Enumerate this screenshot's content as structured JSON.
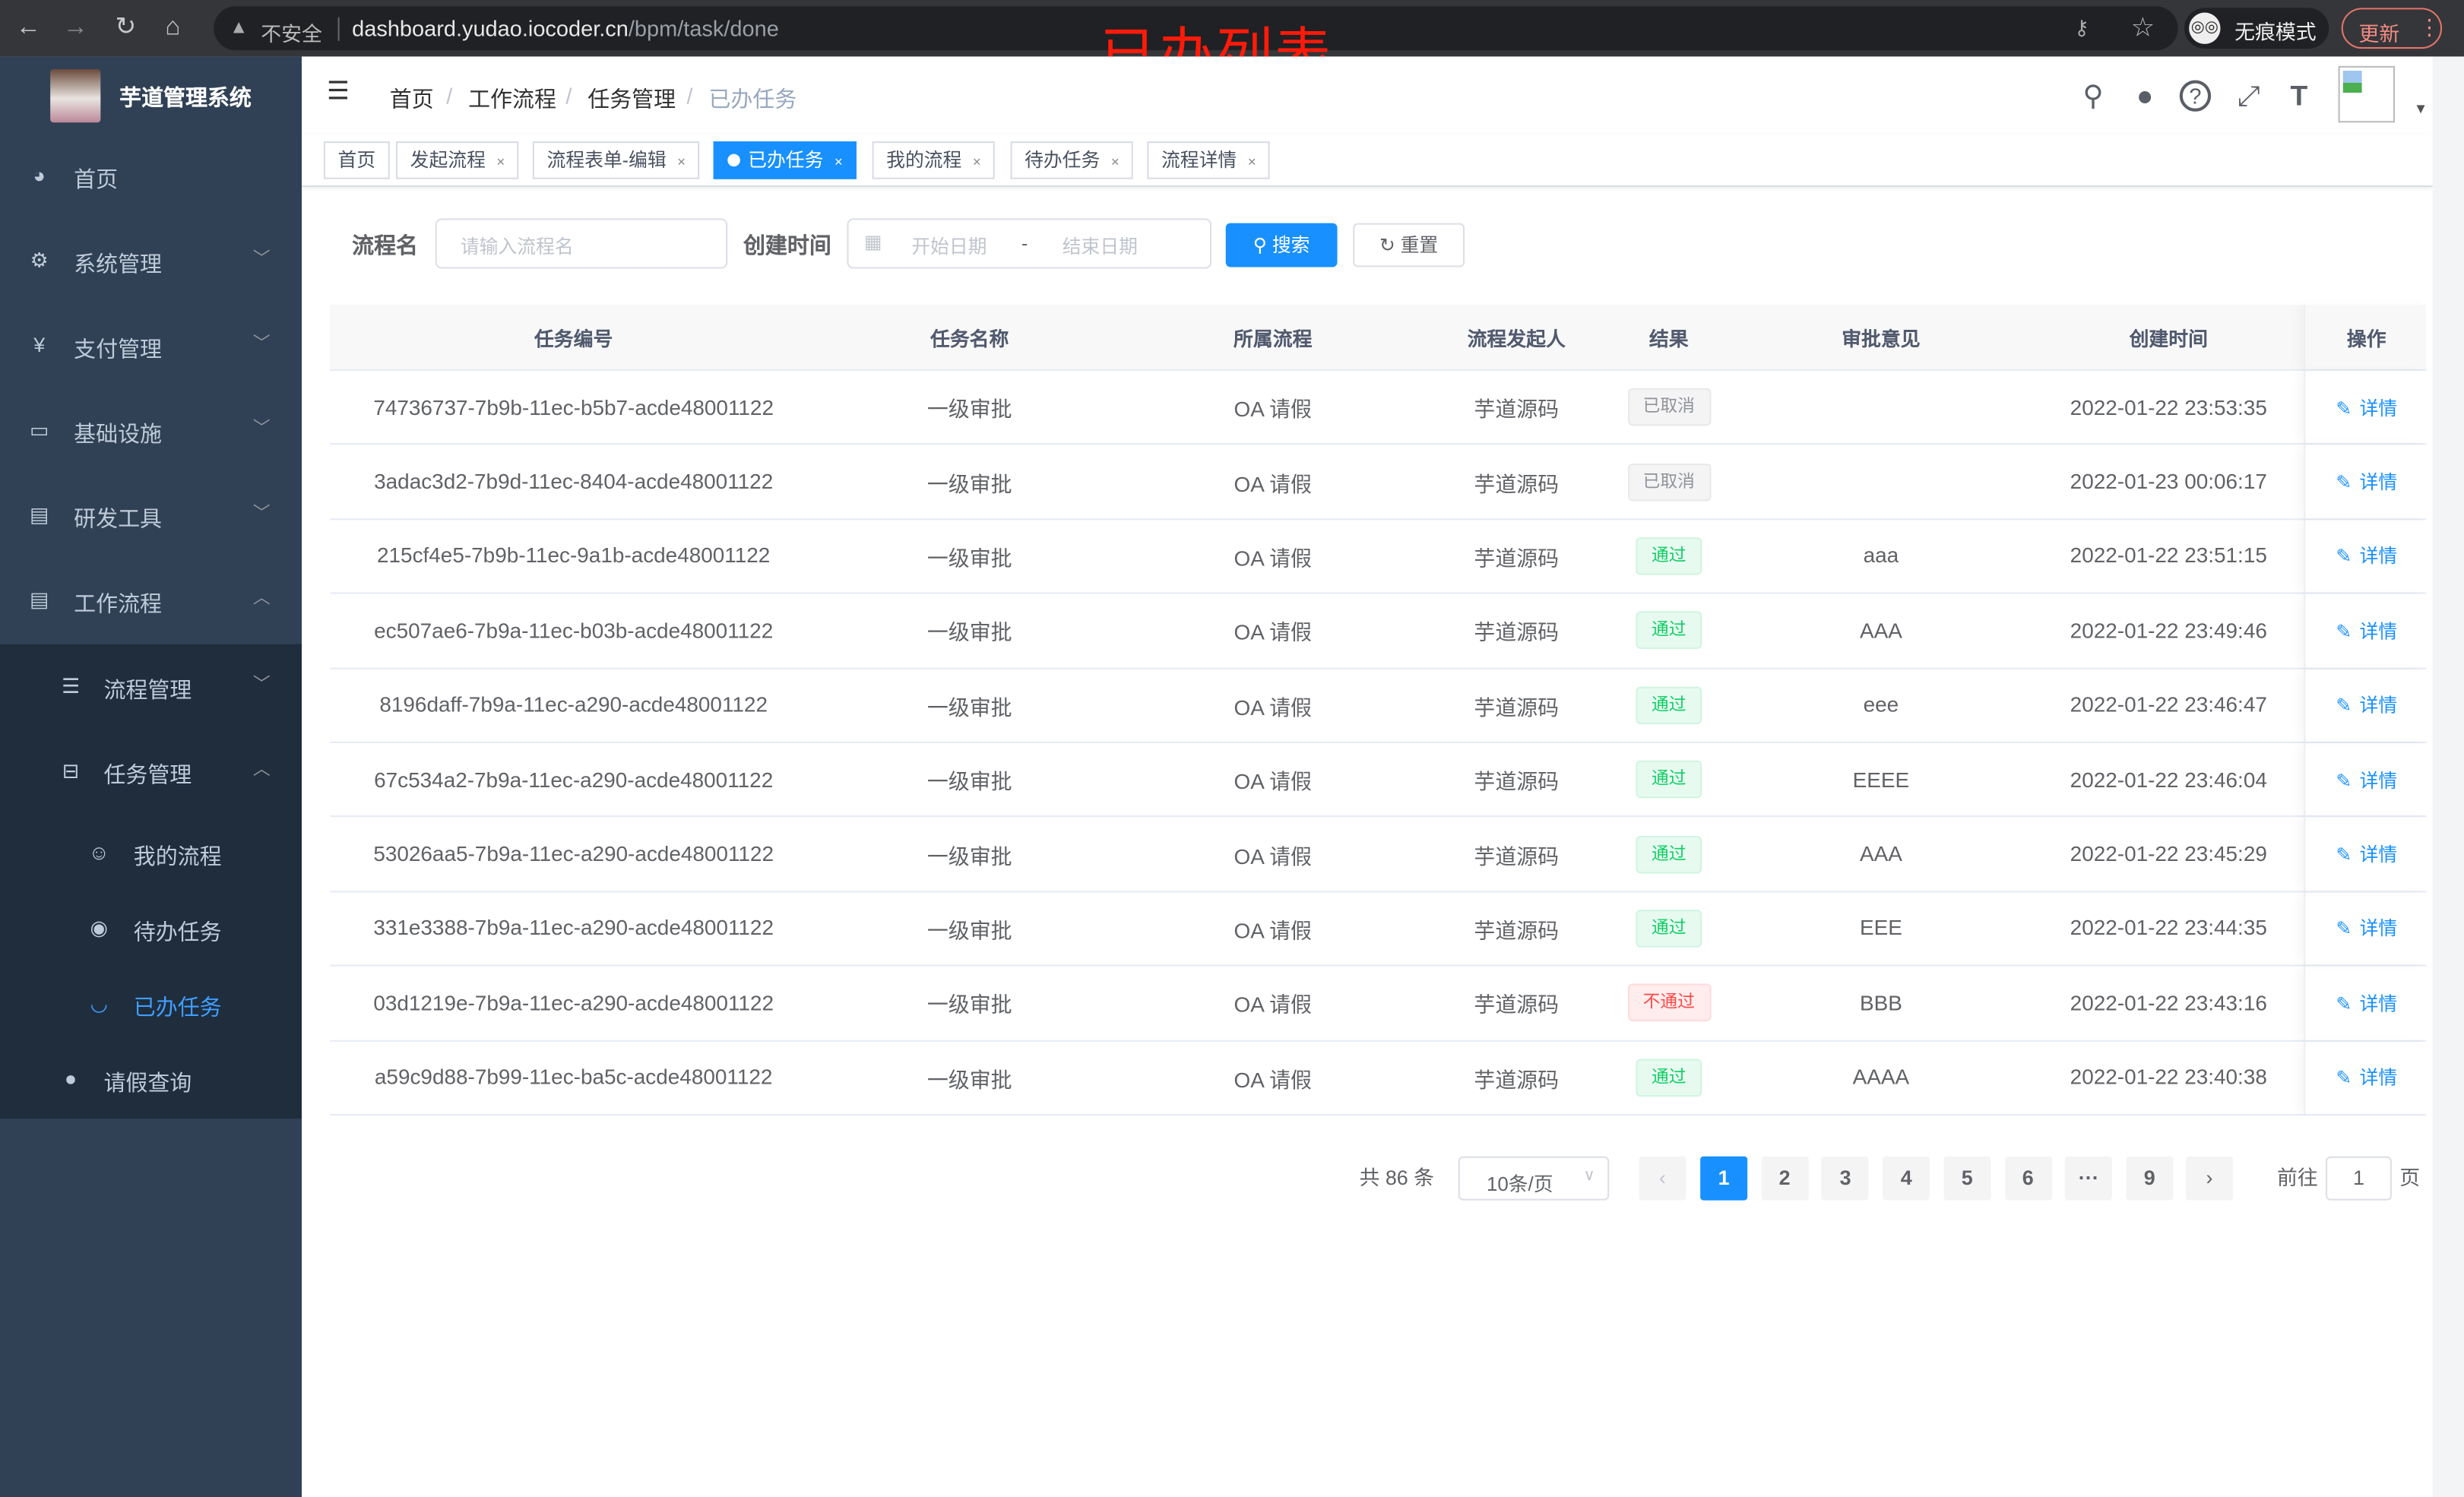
{
  "browser": {
    "insecure_label": "不安全",
    "url_host": "dashboard.yudao.iocoder.cn",
    "url_path": "/bpm/task/done",
    "incognito_label": "无痕模式",
    "update_label": "更新"
  },
  "annotation": "已办列表",
  "sidebar": {
    "title": "芋道管理系统",
    "items": [
      {
        "label": "首页",
        "icon": "dashboard-icon"
      },
      {
        "label": "系统管理",
        "icon": "gear-icon"
      },
      {
        "label": "支付管理",
        "icon": "yen-icon"
      },
      {
        "label": "基础设施",
        "icon": "monitor-icon"
      },
      {
        "label": "研发工具",
        "icon": "toolbox-icon"
      },
      {
        "label": "工作流程",
        "icon": "toolbox-icon"
      }
    ],
    "sub_items": [
      {
        "label": "流程管理",
        "icon": "list-icon"
      },
      {
        "label": "任务管理",
        "icon": "tree-icon"
      },
      {
        "label": "我的流程",
        "icon": "people-icon"
      },
      {
        "label": "待办任务",
        "icon": "eye-icon"
      },
      {
        "label": "已办任务",
        "icon": "eye-closed-icon",
        "active": true
      },
      {
        "label": "请假查询",
        "icon": "user-icon"
      }
    ]
  },
  "breadcrumb": [
    "首页",
    "工作流程",
    "任务管理",
    "已办任务"
  ],
  "tags": [
    {
      "label": "首页",
      "closable": false
    },
    {
      "label": "发起流程",
      "closable": true
    },
    {
      "label": "流程表单-编辑",
      "closable": true
    },
    {
      "label": "已办任务",
      "closable": true,
      "active": true
    },
    {
      "label": "我的流程",
      "closable": true
    },
    {
      "label": "待办任务",
      "closable": true
    },
    {
      "label": "流程详情",
      "closable": true
    }
  ],
  "search": {
    "name_label": "流程名",
    "name_placeholder": "请输入流程名",
    "time_label": "创建时间",
    "start_placeholder": "开始日期",
    "range_sep": "-",
    "end_placeholder": "结束日期",
    "search_button": "搜索",
    "reset_button": "重置"
  },
  "table": {
    "columns": [
      "任务编号",
      "任务名称",
      "所属流程",
      "流程发起人",
      "结果",
      "审批意见",
      "创建时间",
      "操作"
    ],
    "action_label": "详情",
    "rows": [
      {
        "id": "74736737-7b9b-11ec-b5b7-acde48001122",
        "name": "一级审批",
        "process": "OA 请假",
        "starter": "芋道源码",
        "result": "已取消",
        "status": "info",
        "comment": "",
        "time": "2022-01-22 23:53:35"
      },
      {
        "id": "3adac3d2-7b9d-11ec-8404-acde48001122",
        "name": "一级审批",
        "process": "OA 请假",
        "starter": "芋道源码",
        "result": "已取消",
        "status": "info",
        "comment": "",
        "time": "2022-01-23 00:06:17"
      },
      {
        "id": "215cf4e5-7b9b-11ec-9a1b-acde48001122",
        "name": "一级审批",
        "process": "OA 请假",
        "starter": "芋道源码",
        "result": "通过",
        "status": "success",
        "comment": "aaa",
        "time": "2022-01-22 23:51:15"
      },
      {
        "id": "ec507ae6-7b9a-11ec-b03b-acde48001122",
        "name": "一级审批",
        "process": "OA 请假",
        "starter": "芋道源码",
        "result": "通过",
        "status": "success",
        "comment": "AAA",
        "time": "2022-01-22 23:49:46"
      },
      {
        "id": "8196daff-7b9a-11ec-a290-acde48001122",
        "name": "一级审批",
        "process": "OA 请假",
        "starter": "芋道源码",
        "result": "通过",
        "status": "success",
        "comment": "eee",
        "time": "2022-01-22 23:46:47"
      },
      {
        "id": "67c534a2-7b9a-11ec-a290-acde48001122",
        "name": "一级审批",
        "process": "OA 请假",
        "starter": "芋道源码",
        "result": "通过",
        "status": "success",
        "comment": "EEEE",
        "time": "2022-01-22 23:46:04"
      },
      {
        "id": "53026aa5-7b9a-11ec-a290-acde48001122",
        "name": "一级审批",
        "process": "OA 请假",
        "starter": "芋道源码",
        "result": "通过",
        "status": "success",
        "comment": "AAA",
        "time": "2022-01-22 23:45:29"
      },
      {
        "id": "331e3388-7b9a-11ec-a290-acde48001122",
        "name": "一级审批",
        "process": "OA 请假",
        "starter": "芋道源码",
        "result": "通过",
        "status": "success",
        "comment": "EEE",
        "time": "2022-01-22 23:44:35"
      },
      {
        "id": "03d1219e-7b9a-11ec-a290-acde48001122",
        "name": "一级审批",
        "process": "OA 请假",
        "starter": "芋道源码",
        "result": "不通过",
        "status": "danger",
        "comment": "BBB",
        "time": "2022-01-22 23:43:16"
      },
      {
        "id": "a59c9d88-7b99-11ec-ba5c-acde48001122",
        "name": "一级审批",
        "process": "OA 请假",
        "starter": "芋道源码",
        "result": "通过",
        "status": "success",
        "comment": "AAAA",
        "time": "2022-01-22 23:40:38"
      }
    ]
  },
  "pagination": {
    "total_text": "共 86 条",
    "page_size": "10条/页",
    "pages": [
      "1",
      "2",
      "3",
      "4",
      "5",
      "6",
      "···",
      "9"
    ],
    "current": "1",
    "goto_label": "前往",
    "goto_value": "1",
    "page_suffix": "页"
  },
  "colors": {
    "primary": "#1890ff",
    "sidebar_bg": "#304156",
    "submenu_bg": "#1f2d3d",
    "active_menu": "#409eff",
    "success": "#13ce66",
    "danger": "#ff4949",
    "info": "#909399"
  }
}
